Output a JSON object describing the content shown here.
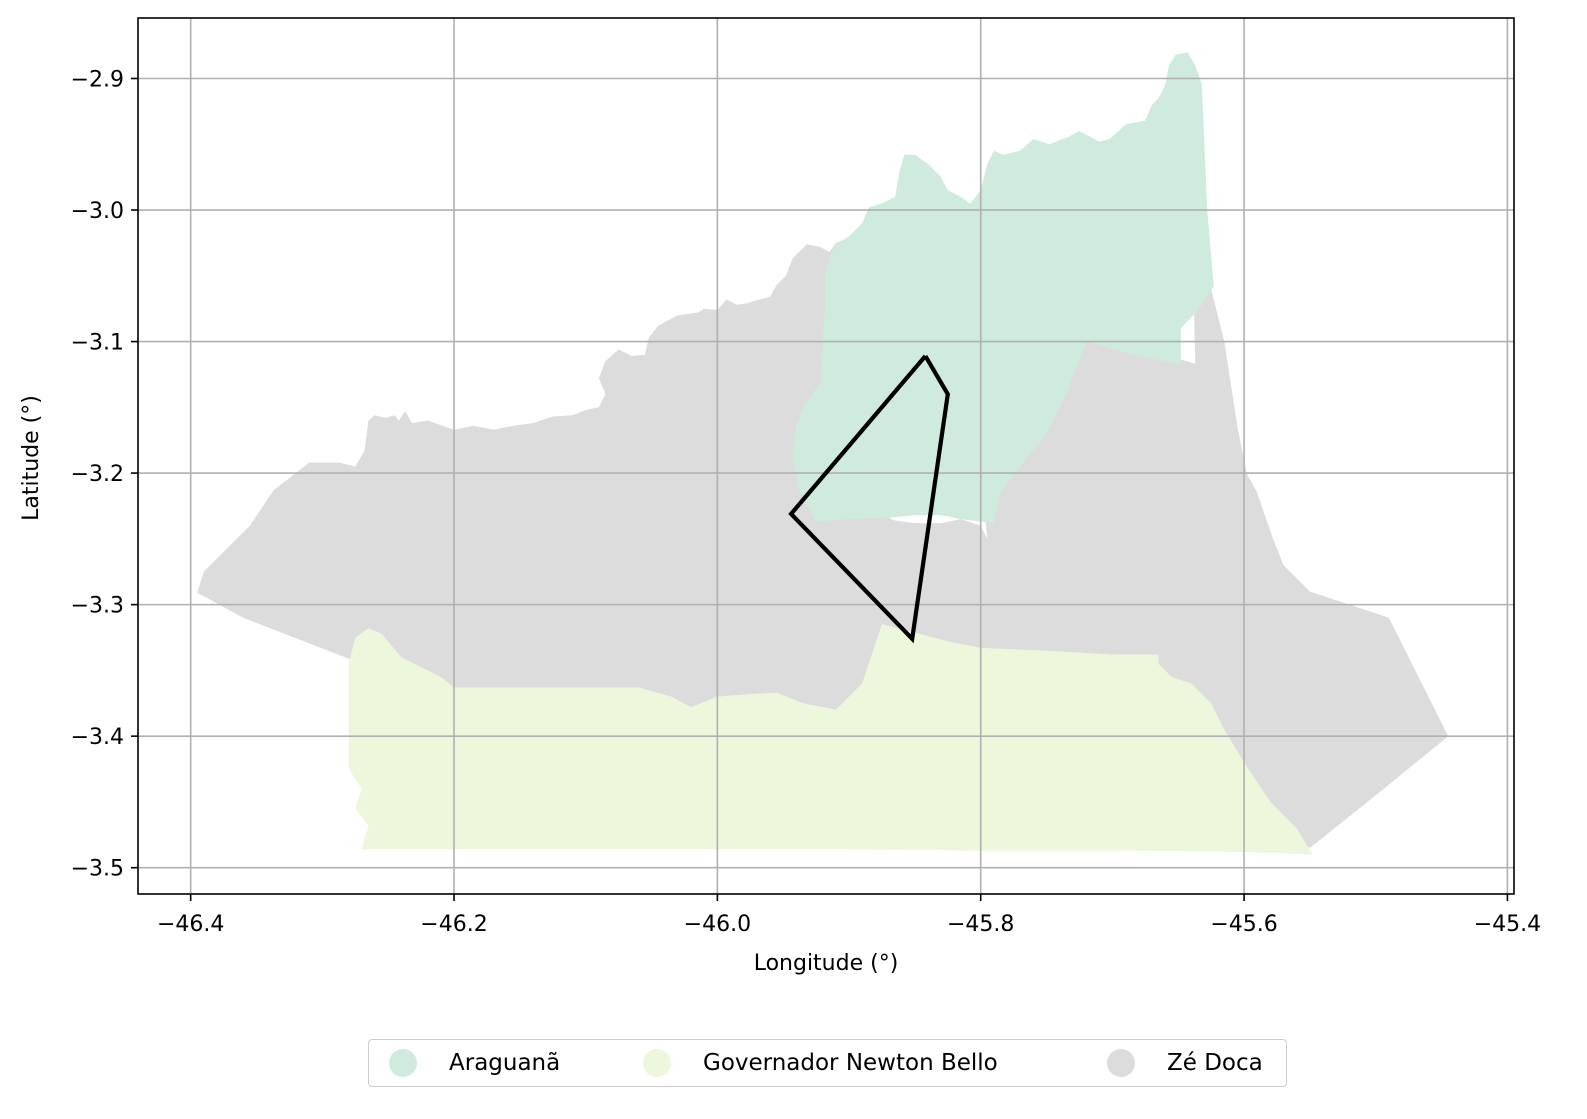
{
  "chart_data": {
    "type": "map",
    "xlabel": "Longitude (°)",
    "ylabel": "Latitude (°)",
    "xlim": [
      -46.44,
      -45.395
    ],
    "ylim": [
      -3.52,
      -2.854
    ],
    "x_ticks": [
      -46.4,
      -46.2,
      -46.0,
      -45.8,
      -45.6,
      -45.4
    ],
    "x_tick_labels": [
      "−46.4",
      "−46.2",
      "−46.0",
      "−45.8",
      "−45.6",
      "−45.4"
    ],
    "y_ticks": [
      -2.9,
      -3.0,
      -3.1,
      -3.2,
      -3.3,
      -3.4,
      -3.5
    ],
    "y_tick_labels": [
      "−2.9",
      "−3.0",
      "−3.1",
      "−3.2",
      "−3.3",
      "−3.4",
      "−3.5"
    ],
    "grid": true,
    "legend_position": "bottom-center",
    "regions": [
      {
        "name": "Zé Doca",
        "color": "#dcdcdc",
        "polygon": [
          [
            -46.395,
            -3.291
          ],
          [
            -46.39,
            -3.275
          ],
          [
            -46.355,
            -3.24
          ],
          [
            -46.337,
            -3.213
          ],
          [
            -46.31,
            -3.192
          ],
          [
            -46.287,
            -3.192
          ],
          [
            -46.275,
            -3.195
          ],
          [
            -46.268,
            -3.183
          ],
          [
            -46.265,
            -3.16
          ],
          [
            -46.26,
            -3.156
          ],
          [
            -46.252,
            -3.158
          ],
          [
            -46.245,
            -3.156
          ],
          [
            -46.242,
            -3.16
          ],
          [
            -46.237,
            -3.153
          ],
          [
            -46.232,
            -3.162
          ],
          [
            -46.22,
            -3.16
          ],
          [
            -46.2,
            -3.167
          ],
          [
            -46.185,
            -3.164
          ],
          [
            -46.17,
            -3.167
          ],
          [
            -46.155,
            -3.164
          ],
          [
            -46.14,
            -3.162
          ],
          [
            -46.125,
            -3.157
          ],
          [
            -46.11,
            -3.156
          ],
          [
            -46.1,
            -3.152
          ],
          [
            -46.09,
            -3.15
          ],
          [
            -46.085,
            -3.14
          ],
          [
            -46.09,
            -3.128
          ],
          [
            -46.085,
            -3.115
          ],
          [
            -46.075,
            -3.106
          ],
          [
            -46.065,
            -3.111
          ],
          [
            -46.055,
            -3.11
          ],
          [
            -46.052,
            -3.097
          ],
          [
            -46.045,
            -3.088
          ],
          [
            -46.03,
            -3.08
          ],
          [
            -46.015,
            -3.078
          ],
          [
            -46.01,
            -3.075
          ],
          [
            -46.0,
            -3.076
          ],
          [
            -45.993,
            -3.068
          ],
          [
            -45.985,
            -3.072
          ],
          [
            -45.978,
            -3.071
          ],
          [
            -45.968,
            -3.068
          ],
          [
            -45.96,
            -3.066
          ],
          [
            -45.955,
            -3.057
          ],
          [
            -45.948,
            -3.05
          ],
          [
            -45.943,
            -3.037
          ],
          [
            -45.932,
            -3.026
          ],
          [
            -45.922,
            -3.028
          ],
          [
            -45.915,
            -3.032
          ],
          [
            -45.91,
            -3.025
          ],
          [
            -45.902,
            -3.022
          ],
          [
            -45.895,
            -3.03
          ],
          [
            -45.89,
            -3.04
          ],
          [
            -45.885,
            -3.06
          ],
          [
            -45.88,
            -3.08
          ],
          [
            -45.875,
            -3.095
          ],
          [
            -45.868,
            -3.11
          ],
          [
            -45.87,
            -3.12
          ],
          [
            -45.882,
            -3.145
          ],
          [
            -45.893,
            -3.165
          ],
          [
            -45.9,
            -3.185
          ],
          [
            -45.89,
            -3.21
          ],
          [
            -45.875,
            -3.232
          ],
          [
            -45.865,
            -3.236
          ],
          [
            -45.85,
            -3.238
          ],
          [
            -45.83,
            -3.238
          ],
          [
            -45.815,
            -3.235
          ],
          [
            -45.8,
            -3.24
          ],
          [
            -45.795,
            -3.25
          ],
          [
            -45.798,
            -3.22
          ],
          [
            -45.78,
            -3.18
          ],
          [
            -45.755,
            -3.14
          ],
          [
            -45.72,
            -3.1
          ],
          [
            -45.7,
            -3.1
          ],
          [
            -45.68,
            -3.105
          ],
          [
            -45.66,
            -3.11
          ],
          [
            -45.637,
            -3.117
          ],
          [
            -45.638,
            -3.078
          ],
          [
            -45.625,
            -3.06
          ],
          [
            -45.615,
            -3.1
          ],
          [
            -45.605,
            -3.165
          ],
          [
            -45.598,
            -3.2
          ],
          [
            -45.59,
            -3.215
          ],
          [
            -45.578,
            -3.25
          ],
          [
            -45.57,
            -3.27
          ],
          [
            -45.55,
            -3.29
          ],
          [
            -45.52,
            -3.3
          ],
          [
            -45.49,
            -3.31
          ],
          [
            -45.445,
            -3.4
          ],
          [
            -45.5,
            -3.445
          ],
          [
            -45.55,
            -3.485
          ],
          [
            -45.58,
            -3.465
          ],
          [
            -45.6,
            -3.455
          ],
          [
            -45.62,
            -3.43
          ],
          [
            -45.64,
            -3.395
          ],
          [
            -45.665,
            -3.355
          ],
          [
            -45.67,
            -3.34
          ],
          [
            -45.7,
            -3.338
          ],
          [
            -45.75,
            -3.335
          ],
          [
            -45.8,
            -3.333
          ],
          [
            -45.825,
            -3.328
          ],
          [
            -45.855,
            -3.32
          ],
          [
            -45.875,
            -3.315
          ],
          [
            -45.88,
            -3.33
          ],
          [
            -45.89,
            -3.36
          ],
          [
            -45.91,
            -3.38
          ],
          [
            -45.935,
            -3.375
          ],
          [
            -45.955,
            -3.367
          ],
          [
            -45.975,
            -3.368
          ],
          [
            -46.0,
            -3.37
          ],
          [
            -46.02,
            -3.378
          ],
          [
            -46.035,
            -3.37
          ],
          [
            -46.06,
            -3.363
          ],
          [
            -46.2,
            -3.363
          ],
          [
            -46.24,
            -3.34
          ],
          [
            -46.26,
            -3.32
          ],
          [
            -46.275,
            -3.343
          ],
          [
            -46.36,
            -3.31
          ]
        ]
      },
      {
        "name": "Araguanã",
        "color": "#ceebdd",
        "polygon": [
          [
            -45.921,
            -3.13
          ],
          [
            -45.935,
            -3.15
          ],
          [
            -45.94,
            -3.164
          ],
          [
            -45.943,
            -3.185
          ],
          [
            -45.938,
            -3.213
          ],
          [
            -45.925,
            -3.237
          ],
          [
            -45.9,
            -3.235
          ],
          [
            -45.87,
            -3.234
          ],
          [
            -45.85,
            -3.232
          ],
          [
            -45.83,
            -3.232
          ],
          [
            -45.815,
            -3.235
          ],
          [
            -45.79,
            -3.238
          ],
          [
            -45.785,
            -3.215
          ],
          [
            -45.77,
            -3.195
          ],
          [
            -45.75,
            -3.17
          ],
          [
            -45.735,
            -3.14
          ],
          [
            -45.72,
            -3.1
          ],
          [
            -45.695,
            -3.107
          ],
          [
            -45.67,
            -3.113
          ],
          [
            -45.648,
            -3.117
          ],
          [
            -45.648,
            -3.09
          ],
          [
            -45.634,
            -3.075
          ],
          [
            -45.623,
            -3.058
          ],
          [
            -45.628,
            -3.0
          ],
          [
            -45.632,
            -2.905
          ],
          [
            -45.637,
            -2.89
          ],
          [
            -45.643,
            -2.88
          ],
          [
            -45.652,
            -2.882
          ],
          [
            -45.657,
            -2.89
          ],
          [
            -45.66,
            -2.905
          ],
          [
            -45.665,
            -2.915
          ],
          [
            -45.67,
            -2.92
          ],
          [
            -45.675,
            -2.932
          ],
          [
            -45.69,
            -2.935
          ],
          [
            -45.702,
            -2.946
          ],
          [
            -45.71,
            -2.948
          ],
          [
            -45.725,
            -2.94
          ],
          [
            -45.735,
            -2.945
          ],
          [
            -45.748,
            -2.95
          ],
          [
            -45.76,
            -2.946
          ],
          [
            -45.77,
            -2.955
          ],
          [
            -45.783,
            -2.958
          ],
          [
            -45.79,
            -2.955
          ],
          [
            -45.795,
            -2.965
          ],
          [
            -45.8,
            -2.985
          ],
          [
            -45.808,
            -2.995
          ],
          [
            -45.815,
            -2.99
          ],
          [
            -45.825,
            -2.985
          ],
          [
            -45.83,
            -2.975
          ],
          [
            -45.84,
            -2.965
          ],
          [
            -45.85,
            -2.958
          ],
          [
            -45.858,
            -2.958
          ],
          [
            -45.862,
            -2.972
          ],
          [
            -45.865,
            -2.99
          ],
          [
            -45.875,
            -2.995
          ],
          [
            -45.885,
            -2.998
          ],
          [
            -45.89,
            -3.01
          ],
          [
            -45.9,
            -3.02
          ],
          [
            -45.91,
            -3.026
          ],
          [
            -45.915,
            -3.035
          ],
          [
            -45.918,
            -3.05
          ],
          [
            -45.918,
            -3.07
          ],
          [
            -45.92,
            -3.1
          ]
        ]
      },
      {
        "name": "Governador Newton Bello",
        "color": "#ecf7db",
        "polygon": [
          [
            -46.28,
            -3.345
          ],
          [
            -46.275,
            -3.325
          ],
          [
            -46.265,
            -3.318
          ],
          [
            -46.255,
            -3.322
          ],
          [
            -46.24,
            -3.34
          ],
          [
            -46.21,
            -3.355
          ],
          [
            -46.2,
            -3.363
          ],
          [
            -46.06,
            -3.363
          ],
          [
            -46.035,
            -3.37
          ],
          [
            -46.02,
            -3.378
          ],
          [
            -46.0,
            -3.37
          ],
          [
            -45.975,
            -3.368
          ],
          [
            -45.955,
            -3.367
          ],
          [
            -45.935,
            -3.375
          ],
          [
            -45.91,
            -3.38
          ],
          [
            -45.89,
            -3.36
          ],
          [
            -45.875,
            -3.315
          ],
          [
            -45.855,
            -3.32
          ],
          [
            -45.825,
            -3.328
          ],
          [
            -45.8,
            -3.333
          ],
          [
            -45.75,
            -3.335
          ],
          [
            -45.7,
            -3.338
          ],
          [
            -45.665,
            -3.338
          ],
          [
            -45.665,
            -3.345
          ],
          [
            -45.655,
            -3.355
          ],
          [
            -45.64,
            -3.36
          ],
          [
            -45.625,
            -3.375
          ],
          [
            -45.615,
            -3.395
          ],
          [
            -45.6,
            -3.42
          ],
          [
            -45.58,
            -3.45
          ],
          [
            -45.56,
            -3.47
          ],
          [
            -45.548,
            -3.49
          ],
          [
            -45.6,
            -3.488
          ],
          [
            -45.7,
            -3.487
          ],
          [
            -45.8,
            -3.487
          ],
          [
            -45.9,
            -3.486
          ],
          [
            -46.0,
            -3.486
          ],
          [
            -46.1,
            -3.486
          ],
          [
            -46.2,
            -3.486
          ],
          [
            -46.27,
            -3.486
          ],
          [
            -46.265,
            -3.468
          ],
          [
            -46.275,
            -3.455
          ],
          [
            -46.27,
            -3.44
          ],
          [
            -46.28,
            -3.425
          ],
          [
            -46.28,
            -3.39
          ],
          [
            -46.28,
            -3.37
          ]
        ]
      }
    ],
    "outline": {
      "color": "#000000",
      "points": [
        [
          -45.842,
          -3.111
        ],
        [
          -45.825,
          -3.14
        ],
        [
          -45.852,
          -3.326
        ],
        [
          -45.944,
          -3.231
        ],
        [
          -45.842,
          -3.111
        ]
      ]
    },
    "legend": [
      {
        "label": "Araguanã",
        "color": "#ceebdd"
      },
      {
        "label": "Governador Newton Bello",
        "color": "#ecf7db"
      },
      {
        "label": "Zé Doca",
        "color": "#dcdcdc"
      }
    ]
  }
}
